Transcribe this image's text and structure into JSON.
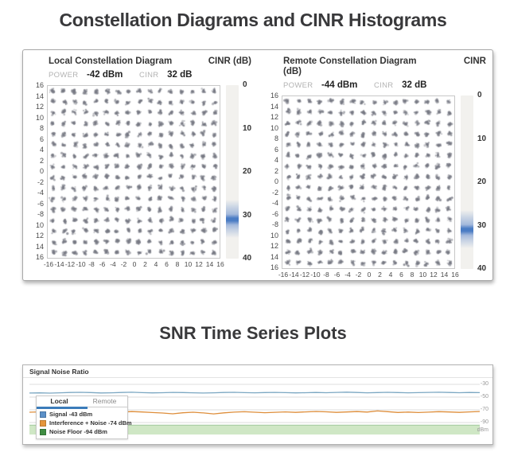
{
  "page": {
    "title1": "Constellation Diagrams and CINR Histograms",
    "title2": "SNR Time Series Plots"
  },
  "panels": [
    {
      "title": "Local Constellation Diagram",
      "cinr_header": "CINR (dB)",
      "cinr_header_wrap": "",
      "power_label": "POWER",
      "power_value": "-42 dBm",
      "cinr_label": "CINR",
      "cinr_value": "32 dB"
    },
    {
      "title": "Remote Constellation Diagram",
      "cinr_header": "CINR",
      "cinr_header_wrap": "(dB)",
      "power_label": "POWER",
      "power_value": "-44 dBm",
      "cinr_label": "CINR",
      "cinr_value": "32 dB"
    }
  ],
  "constellation_axes": {
    "y_labels": [
      "16",
      "14",
      "12",
      "10",
      "8",
      "6",
      "4",
      "2",
      "0",
      "-2",
      "-4",
      "-6",
      "-8",
      "10",
      "12",
      "14",
      "16"
    ],
    "x_labels": [
      "-16",
      "-14",
      "-12",
      "-10",
      "-8",
      "-6",
      "-4",
      "-2",
      "0",
      "2",
      "4",
      "6",
      "8",
      "10",
      "12",
      "14",
      "16"
    ]
  },
  "histogram": {
    "tick_labels": [
      "0",
      "10",
      "20",
      "30",
      "40"
    ],
    "band_color": "#4a7cc4"
  },
  "snr": {
    "header": "Signal Noise Ratio",
    "unit_label": "dBm"
  },
  "chart_data": [
    {
      "type": "scatter",
      "title": "Local Constellation Diagram",
      "power": "-42 dBm",
      "cinr": "32 dB",
      "modulation_grid": [
        16,
        16
      ],
      "x_range": [
        -16,
        16
      ],
      "y_range": [
        -16,
        16
      ],
      "point_color": "#8a8c94",
      "note": "256-QAM constellation: 16x16 grid of noisy gray symbol clusters"
    },
    {
      "type": "scatter",
      "title": "Remote Constellation Diagram",
      "power": "-44 dBm",
      "cinr": "32 dB",
      "modulation_grid": [
        16,
        16
      ],
      "x_range": [
        -16,
        16
      ],
      "y_range": [
        -16,
        16
      ],
      "point_color": "#8a8c94",
      "note": "256-QAM constellation: 16x16 grid of noisy gray symbol clusters"
    },
    {
      "type": "bar",
      "title": "CINR (dB) vertical histogram (both panels)",
      "axis_ticks": [
        0,
        10,
        20,
        30,
        40
      ],
      "band_center": 31,
      "band_spread": 3,
      "band_color": "#4a7cc4",
      "bar_background": "#f2f1ee"
    },
    {
      "type": "line",
      "title": "Signal Noise Ratio",
      "right_axis_ticks": [
        -30,
        -50,
        -70,
        -90
      ],
      "unit": "dBm",
      "legend_tabs": [
        "Local",
        "Remote"
      ],
      "active_tab": "Local",
      "series": [
        {
          "name": "Signal",
          "label": "Signal -43 dBm",
          "swatch_color": "#5b90c8",
          "line_color": "#7ba7c2",
          "values": [
            -43.6,
            -43.4,
            -43.7,
            -43.3,
            -42.8,
            -42.5,
            -42.9,
            -43.5,
            -43.2,
            -42.7,
            -42.4,
            -43.0,
            -43.4,
            -43.1,
            -42.6,
            -42.9,
            -43.3,
            -43.6,
            -43.2,
            -42.8,
            -42.5,
            -43.0,
            -43.3,
            -42.9,
            -42.6,
            -43.0,
            -43.4,
            -43.1,
            -42.7,
            -43.1,
            -42.6,
            -42.3,
            -42.8,
            -43.2,
            -42.9,
            -42.5,
            -42.9,
            -43.3,
            -43.0,
            -42.6,
            -42.4,
            -42.8,
            -43.1,
            -42.8,
            -43.0
          ]
        },
        {
          "name": "Interference + Noise",
          "label": "Interference + Noise -74 dBm",
          "swatch_color": "#e5953b",
          "line_color": "#de8e3b",
          "values": [
            -73.8,
            -73.2,
            -74.5,
            -73.6,
            -74.8,
            -73.9,
            -73.0,
            -73.6,
            -74.4,
            -73.5,
            -72.8,
            -73.4,
            -74.2,
            -75.0,
            -76.2,
            -74.6,
            -73.8,
            -74.9,
            -76.4,
            -74.8,
            -73.6,
            -73.0,
            -73.8,
            -74.5,
            -73.9,
            -73.2,
            -74.0,
            -73.3,
            -72.6,
            -73.1,
            -74.0,
            -73.4,
            -72.7,
            -73.5,
            -71.8,
            -72.9,
            -74.1,
            -73.5,
            -74.3,
            -73.6,
            -72.9,
            -73.4,
            -74.0,
            -73.2,
            -72.6
          ]
        },
        {
          "name": "Noise Floor",
          "label": "Noise Floor -94 dBm",
          "swatch_color": "#3f8d42",
          "fill_color": "#cfe7c5",
          "edge_color": "#a0c89b",
          "area": true,
          "values": [
            -94,
            -94
          ]
        }
      ]
    }
  ]
}
